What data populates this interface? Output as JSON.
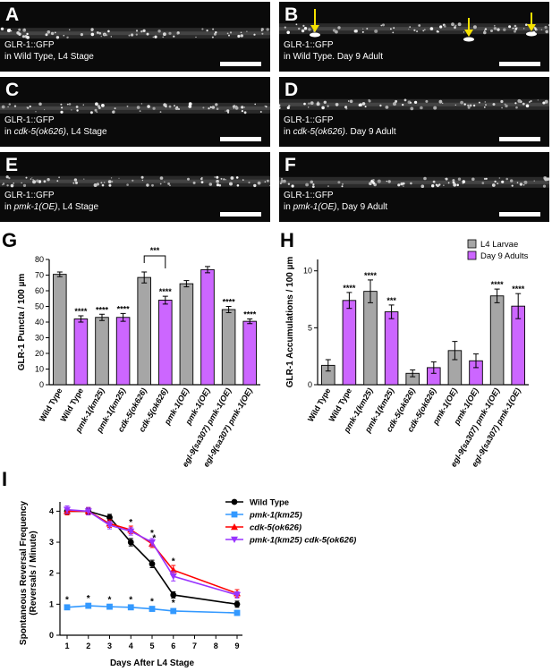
{
  "micrographs": [
    {
      "letter": "A",
      "line1": "GLR-1::GFP",
      "line2_pre": "in Wild Type, L4 Stage",
      "line2_italic": "",
      "line2_post": ""
    },
    {
      "letter": "B",
      "line1": "GLR-1::GFP",
      "line2_pre": "in Wild Type. Day 9 Adult",
      "line2_italic": "",
      "line2_post": ""
    },
    {
      "letter": "C",
      "line1": "GLR-1::GFP",
      "line2_pre": "in ",
      "line2_italic": "cdk-5(ok626)",
      "line2_post": ", L4 Stage"
    },
    {
      "letter": "D",
      "line1": "GLR-1::GFP",
      "line2_pre": "in ",
      "line2_italic": "cdk-5(ok626)",
      "line2_post": ". Day 9 Adult"
    },
    {
      "letter": "E",
      "line1": "GLR-1::GFP",
      "line2_pre": "in ",
      "line2_italic": "pmk-1(OE)",
      "line2_post": ", L4 Stage"
    },
    {
      "letter": "F",
      "line1": "GLR-1::GFP",
      "line2_pre": "in ",
      "line2_italic": "pmk-1(OE)",
      "line2_post": ", Day 9 Adult"
    }
  ],
  "colors": {
    "gray_bar": "#a6a6a6",
    "purple_bar": "#cc66ff",
    "wild_type": "#000000",
    "pmk1": "#3399ff",
    "cdk5": "#ff0000",
    "double": "#9933ff",
    "arrow": "#f5e100"
  },
  "panel_letters": {
    "g": "G",
    "h": "H",
    "i": "I"
  },
  "chart_data": [
    {
      "panel": "G",
      "type": "bar",
      "ylabel": "GLR-1 Puncta / 100 µm",
      "ylim": [
        0,
        80
      ],
      "yticks": [
        "0",
        "10",
        "20",
        "30",
        "40",
        "50",
        "60",
        "70",
        "80"
      ],
      "categories": [
        "Wild Type",
        "Wild Type",
        "pmk-1(km25)",
        "pmk-1(km25)",
        "cdk-5(ok626)",
        "cdk-5(ok626)",
        "pmk-1(OE)",
        "pmk-1(OE)",
        "egl-9(sa307) pmk-1(OE)",
        "egl-9(sa307) pmk-1(OE)"
      ],
      "category_italic": [
        false,
        false,
        true,
        true,
        true,
        true,
        true,
        true,
        true,
        true
      ],
      "groups": [
        "L4",
        "Day9",
        "L4",
        "Day9",
        "L4",
        "Day9",
        "L4",
        "Day9",
        "L4",
        "Day9"
      ],
      "values": [
        70.5,
        42,
        43,
        43,
        68.5,
        54,
        64.5,
        73.5,
        48,
        40.5
      ],
      "errors": [
        1.5,
        2,
        2,
        2.5,
        3.5,
        2.5,
        2,
        2,
        2,
        1.5
      ],
      "stars": [
        "",
        "****",
        "****",
        "****",
        "",
        "****",
        "",
        "",
        "****",
        "****"
      ],
      "bracket": {
        "from": 4,
        "to": 5,
        "label": "***"
      }
    },
    {
      "panel": "H",
      "type": "bar",
      "ylabel": "GLR-1 Accumulations / 100 µm",
      "ylim": [
        0,
        11
      ],
      "yticks": [
        "0",
        "5",
        "10"
      ],
      "categories": [
        "Wild Type",
        "Wild Type",
        "pmk-1(km25)",
        "pmk-1(km25)",
        "cdk-5(ok626)",
        "cdk-5(ok626)",
        "pmk-1(OE)",
        "pmk-1(OE)",
        "egl-9(sa307) pmk-1(OE)",
        "egl-9(sa307) pmk-1(OE)"
      ],
      "category_italic": [
        false,
        false,
        true,
        true,
        true,
        true,
        true,
        true,
        true,
        true
      ],
      "groups": [
        "L4",
        "Day9",
        "L4",
        "Day9",
        "L4",
        "Day9",
        "L4",
        "Day9",
        "L4",
        "Day9"
      ],
      "values": [
        1.7,
        7.4,
        8.2,
        6.4,
        1,
        1.5,
        3,
        2.1,
        7.8,
        6.9
      ],
      "errors": [
        0.5,
        0.7,
        1,
        0.6,
        0.3,
        0.5,
        0.8,
        0.6,
        0.6,
        1.1
      ],
      "stars": [
        "",
        "****",
        "****",
        "***",
        "",
        "",
        "",
        "",
        "****",
        "****"
      ],
      "legend": [
        {
          "label": "L4 Larvae",
          "group": "L4"
        },
        {
          "label": "Day 9 Adults",
          "group": "Day9"
        }
      ]
    },
    {
      "panel": "I",
      "type": "line",
      "xlabel": "Days After L4 Stage",
      "ylabel_line1": "Spontaneous Reversal Frequency",
      "ylabel_line2": "(Reversals / Minute)",
      "xlim": [
        1,
        9
      ],
      "ylim": [
        0,
        4.3
      ],
      "xticks": [
        "1",
        "2",
        "3",
        "4",
        "5",
        "6",
        "7",
        "8",
        "9"
      ],
      "yticks": [
        "0",
        "1",
        "2",
        "3",
        "4"
      ],
      "x": [
        1,
        2,
        3,
        4,
        5,
        6,
        9
      ],
      "series": [
        {
          "name": "Wild Type",
          "italic": false,
          "marker": "circle",
          "values": [
            4.0,
            4.0,
            3.8,
            3.0,
            2.3,
            1.3,
            1.0
          ],
          "errors": [
            0.1,
            0.1,
            0.1,
            0.12,
            0.12,
            0.1,
            0.1
          ]
        },
        {
          "name": "pmk-1(km25)",
          "italic": true,
          "marker": "square",
          "values": [
            0.9,
            0.95,
            0.92,
            0.9,
            0.85,
            0.78,
            0.72
          ],
          "errors": [
            0.06,
            0.06,
            0.05,
            0.05,
            0.06,
            0.06,
            0.08
          ]
        },
        {
          "name": "cdk-5(ok626)",
          "italic": true,
          "marker": "triangle-up",
          "values": [
            4.0,
            4.0,
            3.6,
            3.4,
            2.95,
            2.1,
            1.35
          ],
          "errors": [
            0.12,
            0.12,
            0.12,
            0.12,
            0.12,
            0.15,
            0.12
          ]
        },
        {
          "name": "pmk-1(km25) cdk-5(ok626)",
          "italic": true,
          "marker": "triangle-down",
          "values": [
            4.05,
            4.0,
            3.55,
            3.35,
            3.0,
            1.9,
            1.3
          ],
          "errors": [
            0.12,
            0.12,
            0.12,
            0.12,
            0.12,
            0.15,
            0.1
          ]
        }
      ],
      "annotations": [
        {
          "x": 1,
          "y": 1.05,
          "text": "*"
        },
        {
          "x": 2,
          "y": 1.1,
          "text": "*"
        },
        {
          "x": 3,
          "y": 1.05,
          "text": "*"
        },
        {
          "x": 4,
          "y": 1.05,
          "text": "*"
        },
        {
          "x": 5,
          "y": 1.0,
          "text": "*"
        },
        {
          "x": 6,
          "y": 0.95,
          "text": "*"
        },
        {
          "x": 4,
          "y": 3.55,
          "text": "*"
        },
        {
          "x": 5,
          "y": 3.2,
          "text": "*"
        },
        {
          "x": 5.1,
          "y": 3.05,
          "text": "*"
        },
        {
          "x": 6,
          "y": 2.3,
          "text": "*"
        }
      ]
    }
  ]
}
